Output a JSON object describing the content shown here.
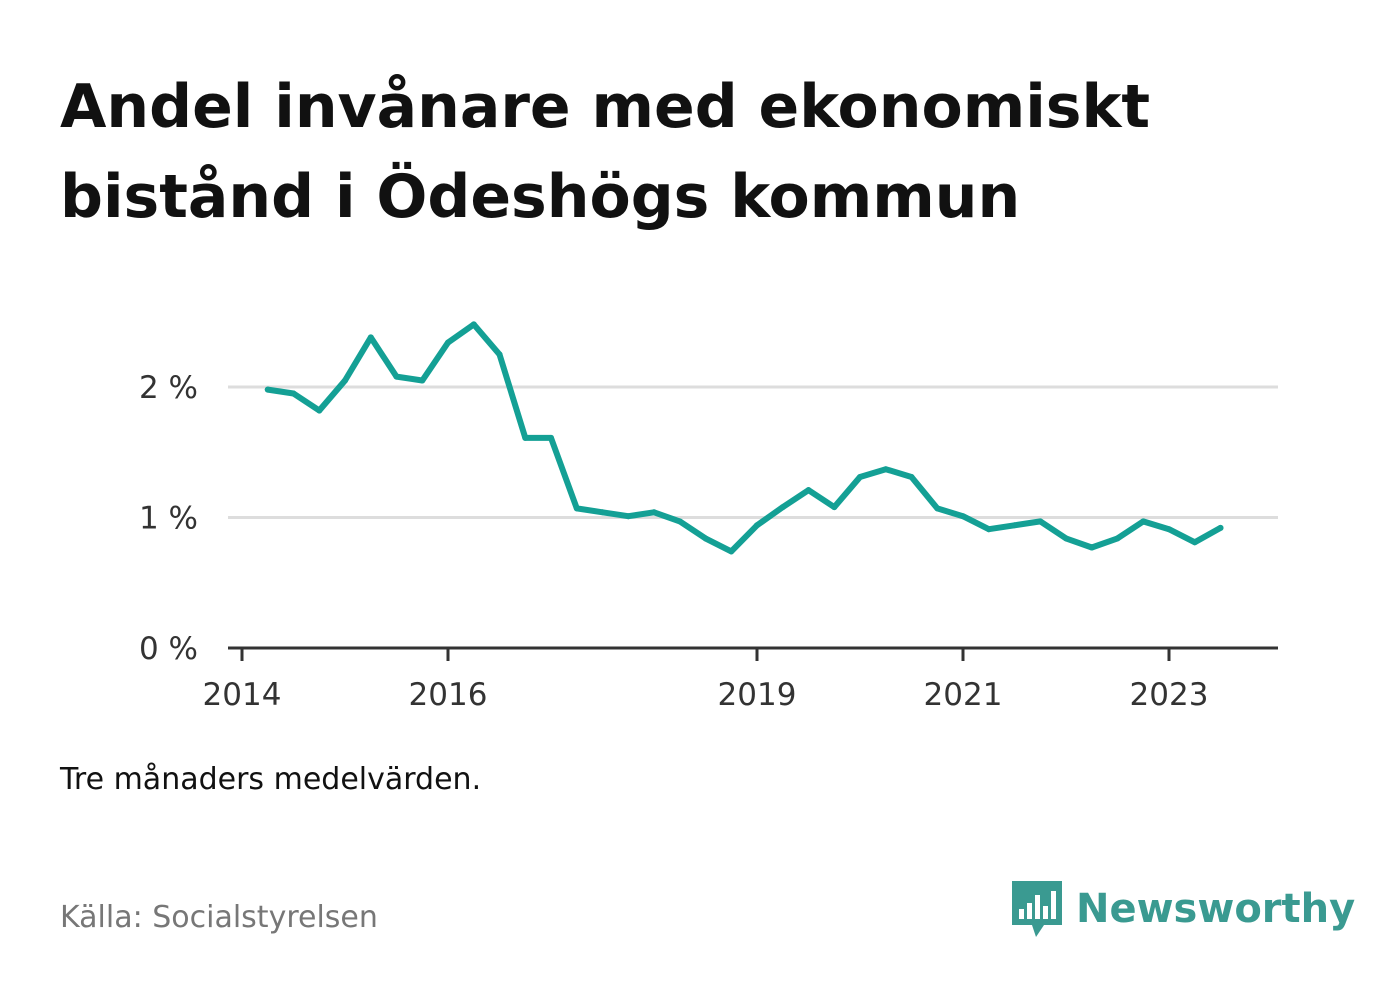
{
  "title": "Andel invånare med ekonomiskt bistånd i Ödeshögs kommun",
  "note": "Tre månaders medelvärden.",
  "source": "Källa: Socialstyrelsen",
  "brand": {
    "name": "Newsworthy",
    "icon": "newsworthy-chart-bubble-icon",
    "color": "#3a9a91"
  },
  "colors": {
    "line": "#14a095",
    "grid": "#dddddd",
    "axis": "#333333",
    "text": "#333333"
  },
  "chart_data": {
    "type": "line",
    "title": "",
    "xlabel": "",
    "ylabel": "",
    "ylim": [
      0,
      2.5
    ],
    "y_ticks": [
      0,
      1,
      2
    ],
    "y_tick_labels": [
      "0 %",
      "1 %",
      "2 %"
    ],
    "x_ticks": [
      2014,
      2016,
      2019,
      2021,
      2023
    ],
    "x_tick_labels": [
      "2014",
      "2016",
      "2019",
      "2021",
      "2023"
    ],
    "grid": true,
    "series": [
      {
        "x": [
          2014.25,
          2014.5,
          2014.75,
          2015.0,
          2015.25,
          2015.5,
          2015.75,
          2016.0,
          2016.25,
          2016.5,
          2016.75,
          2017.0,
          2017.25,
          2017.5,
          2017.75,
          2018.0,
          2018.25,
          2018.5,
          2018.75,
          2019.0,
          2019.25,
          2019.5,
          2019.75,
          2020.0,
          2020.25,
          2020.5,
          2020.75,
          2021.0,
          2021.25,
          2021.5,
          2021.75,
          2022.0,
          2022.25,
          2022.5,
          2022.75,
          2023.0,
          2023.25,
          2023.5
        ],
        "values": [
          1.98,
          1.95,
          1.82,
          2.05,
          2.38,
          2.08,
          2.05,
          2.34,
          2.48,
          2.25,
          1.61,
          1.61,
          1.07,
          1.04,
          1.01,
          1.04,
          0.97,
          0.84,
          0.74,
          0.94,
          1.08,
          1.21,
          1.08,
          1.31,
          1.37,
          1.31,
          1.07,
          1.01,
          0.91,
          0.94,
          0.97,
          0.84,
          0.77,
          0.84,
          0.97,
          0.91,
          0.81,
          0.92
        ]
      }
    ]
  }
}
